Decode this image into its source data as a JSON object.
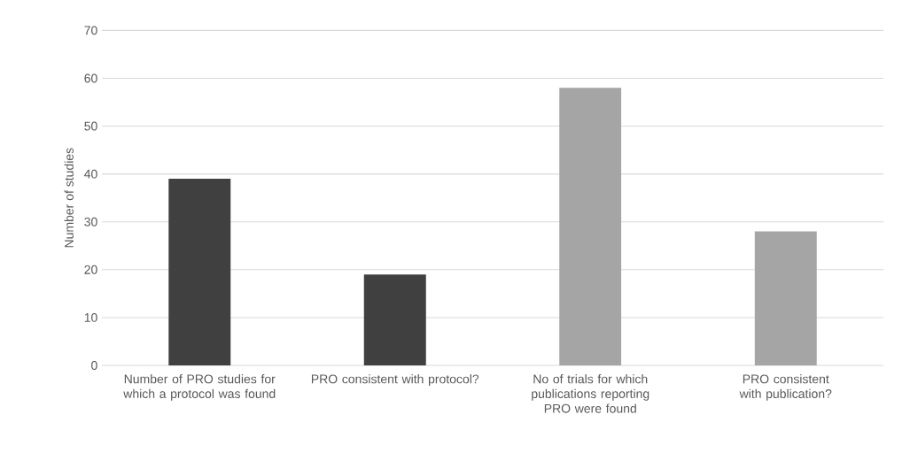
{
  "chart_data": {
    "type": "bar",
    "ylabel": "Number of studies",
    "categories": [
      "Number of PRO studies for which a protocol was found",
      "PRO consistent with protocol?",
      "No of trials for which publications reporting PRO were found",
      "PRO consistent with publication?"
    ],
    "values": [
      39,
      19,
      58,
      28
    ],
    "colors": [
      "#404040",
      "#404040",
      "#a5a5a5",
      "#a5a5a5"
    ],
    "ylim": [
      0,
      70
    ],
    "yticks": [
      0,
      10,
      20,
      30,
      40,
      50,
      60,
      70
    ],
    "grid": "y"
  }
}
